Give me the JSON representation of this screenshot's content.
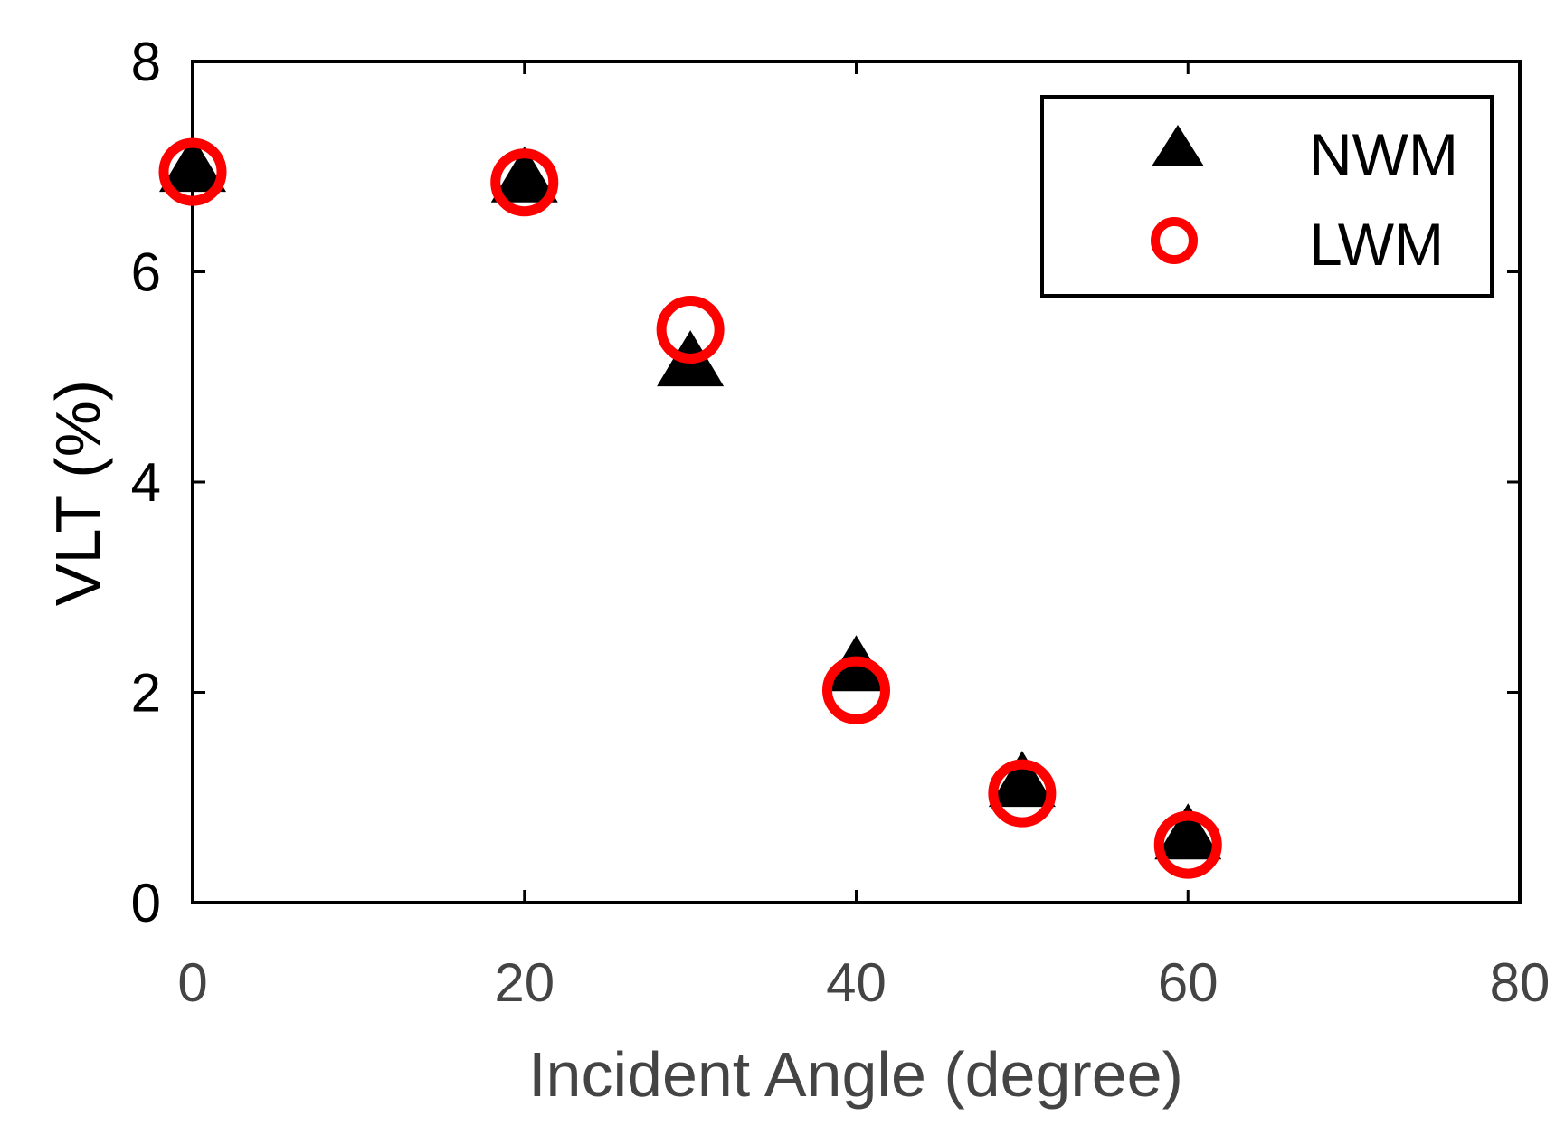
{
  "chart_data": {
    "type": "scatter",
    "xlabel": "Incident Angle (degree)",
    "ylabel": "VLT (%)",
    "xlim": [
      0,
      80
    ],
    "ylim": [
      0,
      8
    ],
    "x_ticks": [
      0,
      20,
      40,
      60,
      80
    ],
    "y_ticks": [
      0,
      2,
      4,
      6,
      8
    ],
    "x_tick_labels": [
      "0",
      "20",
      "40",
      "60",
      "80"
    ],
    "y_tick_labels": [
      "0",
      "2",
      "4",
      "6",
      "8"
    ],
    "grid": false,
    "legend_position": "top-right",
    "series": [
      {
        "name": "NWM",
        "marker": "filled-triangle",
        "color": "#000000",
        "x": [
          0,
          20,
          30,
          40,
          50,
          60
        ],
        "y": [
          6.95,
          6.85,
          5.1,
          2.2,
          1.1,
          0.6
        ]
      },
      {
        "name": "LWM",
        "marker": "open-circle",
        "color": "#ff0000",
        "x": [
          0,
          20,
          30,
          40,
          50,
          60
        ],
        "y": [
          6.95,
          6.85,
          5.45,
          2.02,
          1.04,
          0.55
        ]
      }
    ]
  }
}
